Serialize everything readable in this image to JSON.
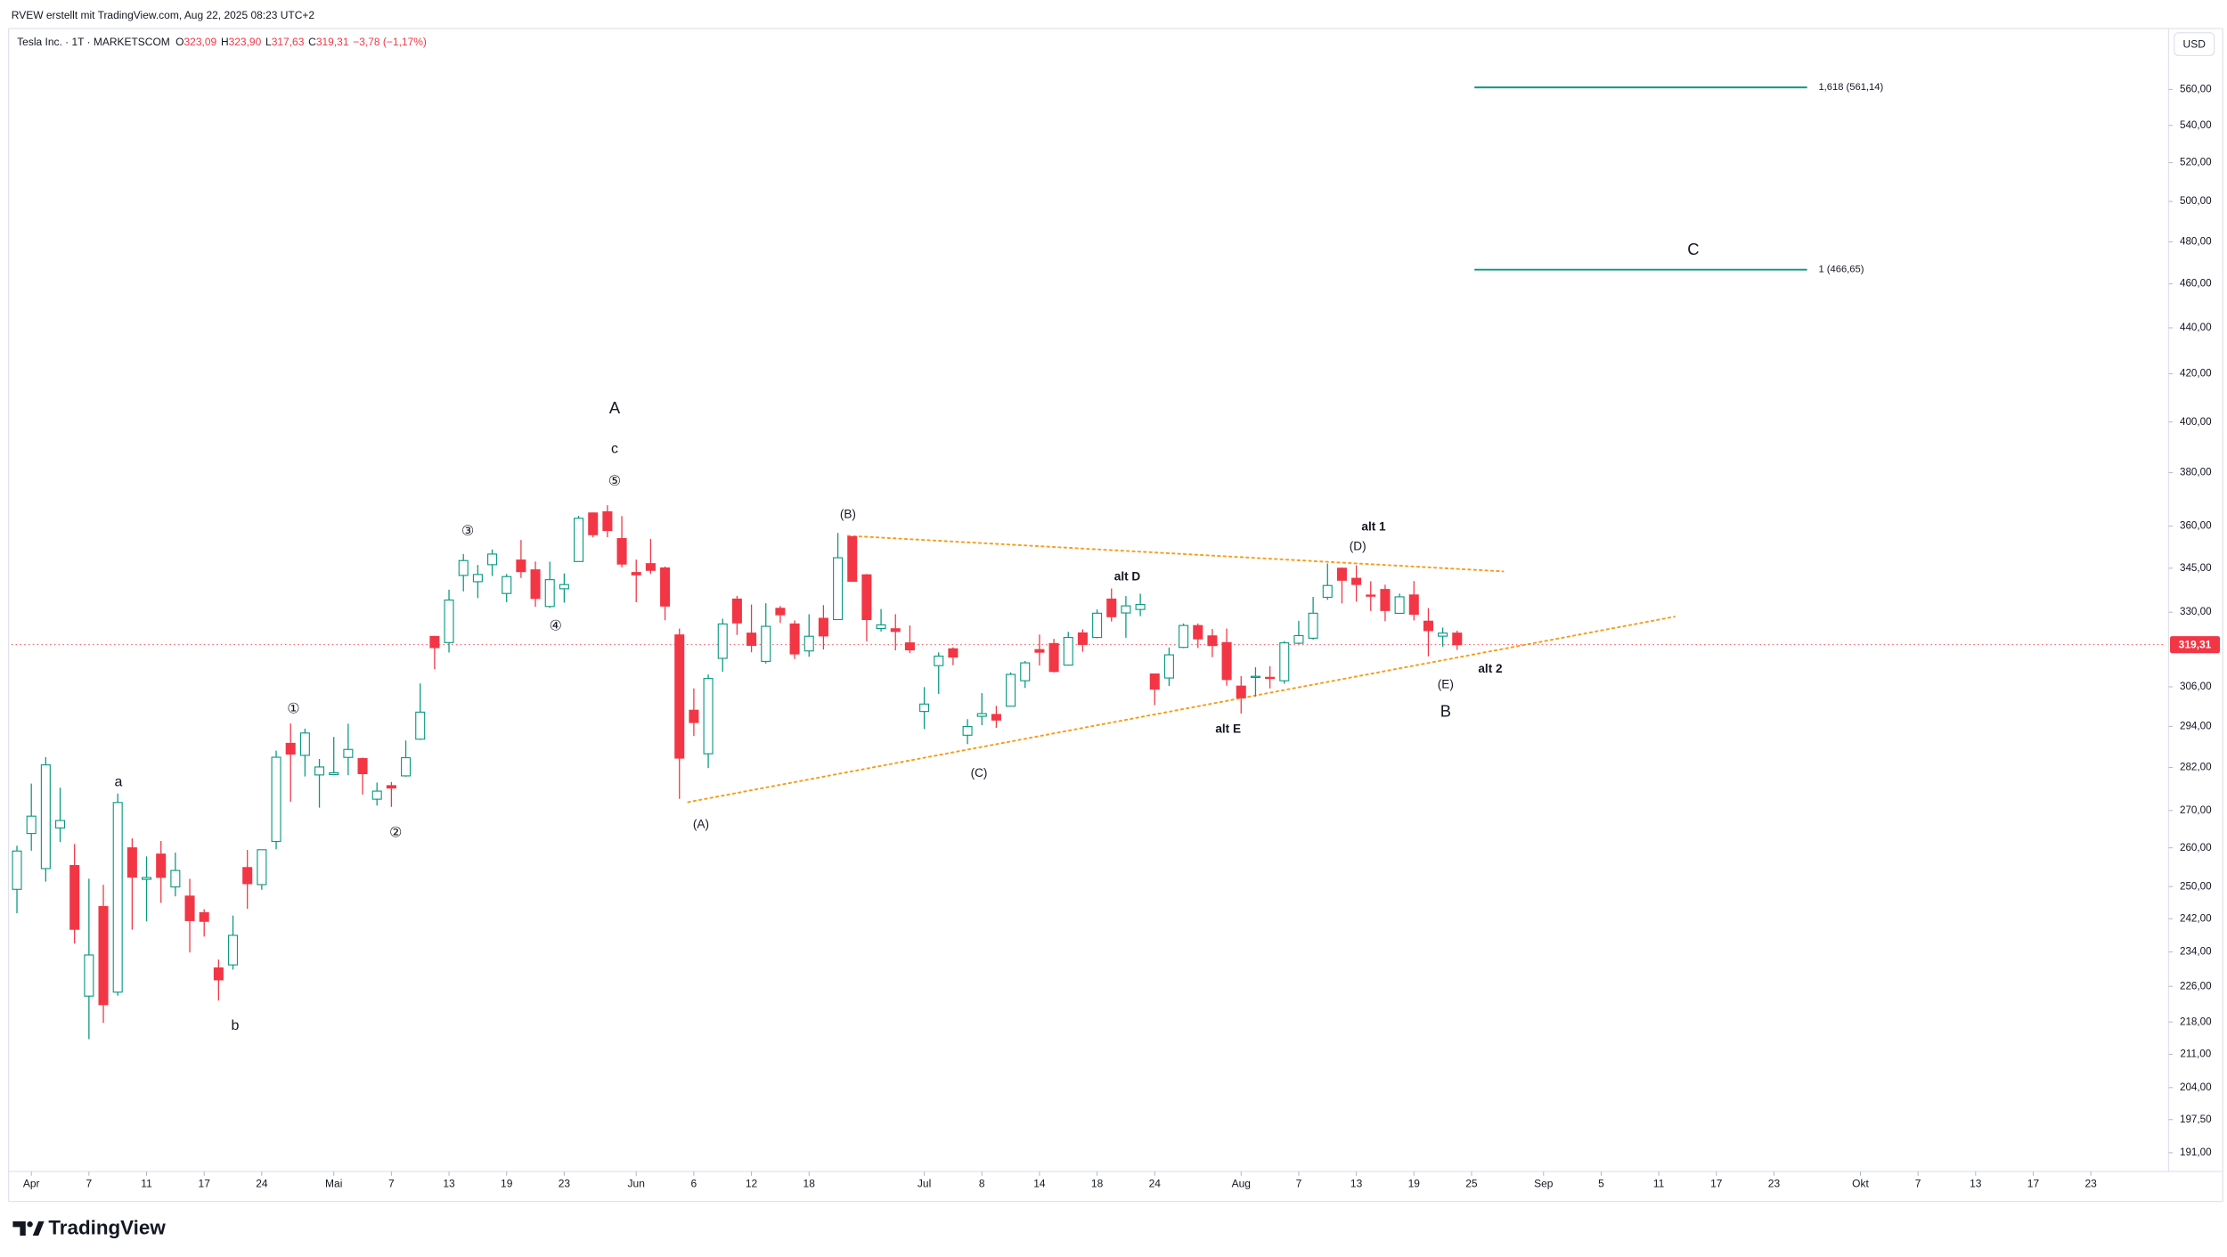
{
  "created_by": "RVEW erstellt mit TradingView.com, Aug 22, 2025 08:23 UTC+2",
  "watermark": "TradingView",
  "chart_data": {
    "type": "candlestick",
    "symbol": "Tesla Inc. · 1T · MARKETSCOM",
    "legend": [
      {
        "key": "O",
        "value": "323,09"
      },
      {
        "key": "H",
        "value": "323,90"
      },
      {
        "key": "L",
        "value": "317,63"
      },
      {
        "key": "C",
        "value": "319,31"
      }
    ],
    "change": "−3,78 (−1,17%)",
    "currency": "USD",
    "log_scale": true,
    "grid": false,
    "up_color": "#089981",
    "down_color": "#f23645",
    "x": [
      "Mar 31",
      "Apr 1",
      "Apr 2",
      "Apr 3",
      "Apr 4",
      "Apr 7",
      "Apr 8",
      "Apr 9",
      "Apr 10",
      "Apr 11",
      "Apr 14",
      "Apr 15",
      "Apr 16",
      "Apr 17",
      "Apr 21",
      "Apr 22",
      "Apr 23",
      "Apr 24",
      "Apr 25",
      "Apr 28",
      "Apr 29",
      "Apr 30",
      "May 1",
      "May 2",
      "May 5",
      "May 6",
      "May 7",
      "May 8",
      "May 9",
      "May 12",
      "May 13",
      "May 14",
      "May 15",
      "May 16",
      "May 19",
      "May 20",
      "May 21",
      "May 22",
      "May 23",
      "May 27",
      "May 28",
      "May 29",
      "May 30",
      "Jun 2",
      "Jun 3",
      "Jun 4",
      "Jun 5",
      "Jun 6",
      "Jun 9",
      "Jun 10",
      "Jun 11",
      "Jun 12",
      "Jun 13",
      "Jun 16",
      "Jun 17",
      "Jun 18",
      "Jun 20",
      "Jun 23",
      "Jun 24",
      "Jun 25",
      "Jun 26",
      "Jun 27",
      "Jun 30",
      "Jul 1",
      "Jul 2",
      "Jul 3",
      "Jul 7",
      "Jul 8",
      "Jul 9",
      "Jul 10",
      "Jul 11",
      "Jul 14",
      "Jul 15",
      "Jul 16",
      "Jul 17",
      "Jul 18",
      "Jul 21",
      "Jul 22",
      "Jul 23",
      "Jul 24",
      "Jul 25",
      "Jul 28",
      "Jul 29",
      "Jul 30",
      "Jul 31",
      "Aug 1",
      "Aug 4",
      "Aug 5",
      "Aug 6",
      "Aug 7",
      "Aug 8",
      "Aug 11",
      "Aug 12",
      "Aug 13",
      "Aug 14",
      "Aug 15",
      "Aug 18",
      "Aug 19",
      "Aug 20",
      "Aug 21",
      "Aug 22"
    ],
    "open": [
      249.31,
      263.8,
      254.6,
      265.29,
      255.38,
      223.78,
      245.0,
      224.69,
      260.0,
      251.84,
      258.36,
      249.91,
      247.61,
      243.47,
      230.26,
      230.96,
      254.86,
      250.5,
      261.69,
      288.98,
      285.5,
      279.9,
      280.01,
      284.9,
      284.57,
      273.11,
      276.88,
      279.63,
      290.21,
      321.99,
      320.0,
      342.5,
      340.34,
      346.24,
      336.3,
      347.87,
      344.43,
      331.9,
      337.92,
      347.35,
      364.84,
      365.29,
      355.52,
      343.5,
      346.6,
      345.1,
      322.49,
      298.83,
      285.96,
      314.94,
      334.4,
      323.08,
      313.97,
      331.29,
      326.09,
      317.31,
      327.95,
      327.54,
      356.17,
      342.7,
      324.61,
      324.51,
      319.9,
      298.46,
      312.63,
      317.99,
      291.37,
      297.0,
      297.55,
      300.05,
      307.89,
      317.73,
      319.68,
      312.8,
      323.15,
      321.66,
      334.4,
      329.74,
      330.9,
      310.0,
      308.74,
      318.45,
      325.55,
      322.18,
      320.0,
      306.21,
      309.08,
      308.95,
      307.89,
      319.79,
      321.43,
      335.0,
      345.0,
      341.5,
      335.76,
      337.66,
      329.62,
      335.79,
      327.0,
      322.08,
      323.09
    ],
    "high": [
      260.56,
      277.45,
      284.99,
      276.3,
      261.0,
      252.0,
      250.44,
      274.69,
      262.49,
      257.74,
      261.8,
      258.75,
      251.97,
      244.34,
      232.21,
      242.79,
      259.45,
      259.54,
      286.85,
      294.86,
      293.32,
      284.45,
      290.87,
      294.78,
      284.85,
      277.73,
      277.92,
      289.8,
      307.04,
      322.21,
      337.59,
      350.0,
      346.14,
      351.62,
      343.0,
      354.99,
      347.35,
      347.27,
      343.18,
      363.79,
      365.0,
      367.71,
      363.68,
      348.02,
      355.4,
      345.6,
      324.55,
      305.5,
      309.83,
      327.83,
      335.5,
      332.56,
      332.99,
      332.05,
      327.26,
      329.32,
      332.36,
      357.54,
      356.26,
      343.0,
      331.05,
      329.34,
      325.58,
      305.89,
      316.83,
      318.45,
      296.15,
      304.05,
      300.15,
      310.48,
      314.09,
      322.6,
      321.2,
      323.5,
      324.34,
      330.9,
      338.0,
      335.41,
      336.2,
      310.15,
      318.43,
      326.25,
      326.25,
      324.45,
      324.58,
      309.31,
      312.12,
      312.45,
      320.47,
      327.12,
      335.15,
      346.64,
      345.26,
      346.0,
      340.47,
      339.3,
      336.27,
      340.55,
      331.37,
      324.9,
      323.9
    ],
    "low": [
      243.36,
      259.25,
      251.27,
      261.51,
      236.0,
      214.25,
      217.8,
      223.88,
      239.33,
      241.36,
      245.93,
      247.54,
      233.89,
      237.68,
      222.79,
      229.85,
      244.43,
      249.2,
      259.63,
      272.42,
      279.47,
      270.78,
      279.81,
      279.81,
      274.4,
      271.35,
      271.0,
      279.41,
      290.0,
      311.5,
      316.8,
      337.0,
      334.72,
      342.33,
      333.37,
      341.63,
      331.8,
      331.39,
      333.21,
      347.32,
      355.91,
      356.0,
      345.29,
      333.33,
      343.04,
      327.33,
      273.21,
      291.14,
      281.85,
      310.67,
      322.5,
      316.86,
      313.3,
      326.41,
      314.74,
      315.45,
      317.78,
      327.48,
      340.44,
      320.4,
      323.61,
      317.5,
      316.6,
      293.21,
      303.82,
      312.76,
      288.77,
      294.35,
      293.55,
      300.0,
      305.65,
      312.67,
      310.5,
      312.62,
      317.06,
      321.42,
      326.88,
      321.55,
      328.67,
      300.41,
      306.26,
      318.2,
      318.26,
      315.31,
      306.35,
      297.82,
      303.0,
      305.5,
      306.93,
      319.5,
      320.98,
      334.15,
      332.94,
      333.5,
      330.4,
      327.02,
      329.59,
      327.25,
      315.6,
      318.68,
      317.63
    ],
    "close": [
      259.16,
      268.46,
      282.76,
      267.28,
      239.43,
      233.29,
      221.86,
      272.2,
      252.4,
      252.31,
      252.35,
      254.11,
      241.55,
      241.37,
      227.5,
      237.97,
      250.74,
      259.51,
      284.95,
      285.88,
      292.03,
      282.16,
      280.52,
      287.21,
      280.26,
      275.35,
      276.22,
      284.82,
      298.26,
      318.38,
      334.07,
      347.68,
      342.82,
      349.98,
      342.09,
      343.82,
      334.62,
      341.04,
      339.34,
      362.89,
      356.9,
      358.43,
      346.46,
      342.69,
      344.27,
      332.05,
      284.7,
      295.14,
      308.58,
      326.09,
      326.43,
      319.11,
      325.31,
      329.13,
      316.35,
      322.05,
      322.16,
      348.68,
      340.47,
      327.55,
      325.78,
      323.63,
      317.66,
      300.71,
      315.65,
      315.35,
      293.94,
      297.81,
      295.88,
      309.87,
      313.51,
      316.9,
      310.78,
      321.67,
      319.41,
      329.65,
      328.49,
      332.11,
      332.56,
      305.3,
      316.06,
      325.59,
      321.2,
      319.04,
      308.27,
      302.63,
      309.26,
      308.72,
      319.91,
      322.27,
      329.65,
      339.03,
      340.84,
      339.38,
      335.58,
      330.56,
      335.16,
      329.31,
      323.9,
      323.09,
      319.31
    ],
    "xlim": [
      -0.385,
      149.2
    ],
    "xticks": [
      {
        "value": 1,
        "label": "Apr"
      },
      {
        "value": 5,
        "label": "7"
      },
      {
        "value": 9,
        "label": "11"
      },
      {
        "value": 13,
        "label": "17"
      },
      {
        "value": 17,
        "label": "24"
      },
      {
        "value": 22,
        "label": "Mai"
      },
      {
        "value": 26,
        "label": "7"
      },
      {
        "value": 30,
        "label": "13"
      },
      {
        "value": 34,
        "label": "19"
      },
      {
        "value": 38,
        "label": "23"
      },
      {
        "value": 43,
        "label": "Jun"
      },
      {
        "value": 47,
        "label": "6"
      },
      {
        "value": 51,
        "label": "12"
      },
      {
        "value": 55,
        "label": "18"
      },
      {
        "value": 63,
        "label": "Jul"
      },
      {
        "value": 67,
        "label": "8"
      },
      {
        "value": 71,
        "label": "14"
      },
      {
        "value": 75,
        "label": "18"
      },
      {
        "value": 79,
        "label": "24"
      },
      {
        "value": 85,
        "label": "Aug"
      },
      {
        "value": 89,
        "label": "7"
      },
      {
        "value": 93,
        "label": "13"
      },
      {
        "value": 97,
        "label": "19"
      },
      {
        "value": 101,
        "label": "25"
      },
      {
        "value": 106,
        "label": "Sep"
      },
      {
        "value": 110,
        "label": "5"
      },
      {
        "value": 114,
        "label": "11"
      },
      {
        "value": 118,
        "label": "17"
      },
      {
        "value": 122,
        "label": "23"
      },
      {
        "value": 128,
        "label": "Okt"
      },
      {
        "value": 132,
        "label": "7"
      },
      {
        "value": 136,
        "label": "13"
      },
      {
        "value": 140,
        "label": "17"
      },
      {
        "value": 144,
        "label": "23"
      }
    ],
    "ylim": [
      187.4,
      595.6
    ],
    "yticks": [
      {
        "value": 560,
        "label": "560,00"
      },
      {
        "value": 540,
        "label": "540,00"
      },
      {
        "value": 520,
        "label": "520,00"
      },
      {
        "value": 500,
        "label": "500,00"
      },
      {
        "value": 480,
        "label": "480,00"
      },
      {
        "value": 460,
        "label": "460,00"
      },
      {
        "value": 440,
        "label": "440,00"
      },
      {
        "value": 420,
        "label": "420,00"
      },
      {
        "value": 400,
        "label": "400,00"
      },
      {
        "value": 380,
        "label": "380,00"
      },
      {
        "value": 360,
        "label": "360,00"
      },
      {
        "value": 345,
        "label": "345,00"
      },
      {
        "value": 330,
        "label": "330,00"
      },
      {
        "value": 306,
        "label": "306,00"
      },
      {
        "value": 294,
        "label": "294,00"
      },
      {
        "value": 282,
        "label": "282,00"
      },
      {
        "value": 270,
        "label": "270,00"
      },
      {
        "value": 260,
        "label": "260,00"
      },
      {
        "value": 250,
        "label": "250,00"
      },
      {
        "value": 242,
        "label": "242,00"
      },
      {
        "value": 234,
        "label": "234,00"
      },
      {
        "value": 226,
        "label": "226,00"
      },
      {
        "value": 218,
        "label": "218,00"
      },
      {
        "value": 211,
        "label": "211,00"
      },
      {
        "value": 204,
        "label": "204,00"
      },
      {
        "value": 197.5,
        "label": "197,50"
      },
      {
        "value": 191,
        "label": "191,00"
      }
    ],
    "last_price": {
      "value": 319.31,
      "label": "319,31"
    },
    "fib_levels": [
      {
        "label": "1,618 (561,14)",
        "value": 561.14,
        "x_start": 101.2,
        "x_end": 124.3,
        "color": "#089981"
      },
      {
        "label": "1 (466,65)",
        "value": 466.65,
        "x_start": 101.2,
        "x_end": 124.3,
        "color": "#089981"
      }
    ],
    "trendlines": [
      {
        "points": [
          [
            57.7,
            356.5
          ],
          [
            103.2,
            343.9
          ]
        ],
        "color": "#f59d1a"
      },
      {
        "points": [
          [
            46.6,
            272.3
          ],
          [
            115.1,
            328.5
          ]
        ],
        "color": "#f59d1a"
      }
    ],
    "annotations": [
      {
        "text": "a",
        "x": 7.05,
        "y": 277.8,
        "color": "#131722"
      },
      {
        "text": "b",
        "x": 15.15,
        "y": 217.1,
        "color": "#131722"
      },
      {
        "text": "①",
        "x": 19.2,
        "y": 299.1,
        "color": "#131722"
      },
      {
        "text": "②",
        "x": 26.3,
        "y": 263.9,
        "color": "#131722"
      },
      {
        "text": "③",
        "x": 31.3,
        "y": 358.0,
        "color": "#131722"
      },
      {
        "text": "④",
        "x": 37.4,
        "y": 325.2,
        "color": "#131722"
      },
      {
        "text": "⑤",
        "x": 41.5,
        "y": 376.5,
        "color": "#131722"
      },
      {
        "text": "c",
        "x": 41.5,
        "y": 389.2,
        "color": "#131722"
      },
      {
        "text": "A",
        "x": 41.5,
        "y": 405.3,
        "color": "#089981"
      },
      {
        "text": "(A)",
        "x": 47.5,
        "y": 266.1,
        "color": "#2962ff"
      },
      {
        "text": "(B)",
        "x": 57.7,
        "y": 364.2,
        "color": "#2962ff"
      },
      {
        "text": "(C)",
        "x": 66.8,
        "y": 280.3,
        "color": "#2962ff"
      },
      {
        "text": "alt D",
        "x": 77.1,
        "y": 341.9,
        "color": "#00bcd4"
      },
      {
        "text": "alt E",
        "x": 84.1,
        "y": 293.1,
        "color": "#00bcd4"
      },
      {
        "text": "(D)",
        "x": 93.1,
        "y": 352.5,
        "color": "#2962ff"
      },
      {
        "text": "alt 1",
        "x": 94.2,
        "y": 359.6,
        "color": "#00bcd4"
      },
      {
        "text": "(E)",
        "x": 99.2,
        "y": 306.5,
        "color": "#2962ff"
      },
      {
        "text": "B",
        "x": 99.2,
        "y": 298.2,
        "color": "#089981"
      },
      {
        "text": "alt 2",
        "x": 102.3,
        "y": 311.4,
        "color": "#00bcd4"
      },
      {
        "text": "C",
        "x": 116.4,
        "y": 475.9,
        "color": "#089981"
      }
    ]
  }
}
